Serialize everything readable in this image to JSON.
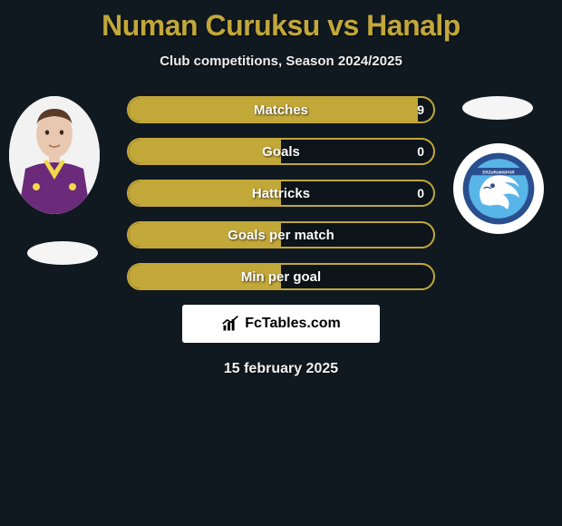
{
  "title": {
    "player1": "Numan Curuksu",
    "vs": "vs",
    "player2": "Hanalp",
    "color": "#c2a739"
  },
  "subtitle": "Club competitions, Season 2024/2025",
  "date": "15 february 2025",
  "brand": "FcTables.com",
  "bars": [
    {
      "label": "Matches",
      "left": "",
      "right": "9",
      "fill_pct": 95,
      "color": "#c2a739"
    },
    {
      "label": "Goals",
      "left": "",
      "right": "0",
      "fill_pct": 50,
      "color": "#c2a739"
    },
    {
      "label": "Hattricks",
      "left": "",
      "right": "0",
      "fill_pct": 50,
      "color": "#c2a739"
    },
    {
      "label": "Goals per match",
      "left": "",
      "right": "",
      "fill_pct": 50,
      "color": "#c2a739"
    },
    {
      "label": "Min per goal",
      "left": "",
      "right": "",
      "fill_pct": 50,
      "color": "#c2a739"
    }
  ],
  "colors": {
    "background": "#101920",
    "bar_border": "#c2a739",
    "bar_fill": "#c2a739",
    "text": "#ffffff"
  },
  "player_left": {
    "jersey_color": "#6b2a7a",
    "skin": "#e8c8b0",
    "hair": "#5a3b28"
  },
  "club_right": {
    "main": "#2a4f8f",
    "light": "#58b5e8",
    "white": "#ffffff"
  }
}
